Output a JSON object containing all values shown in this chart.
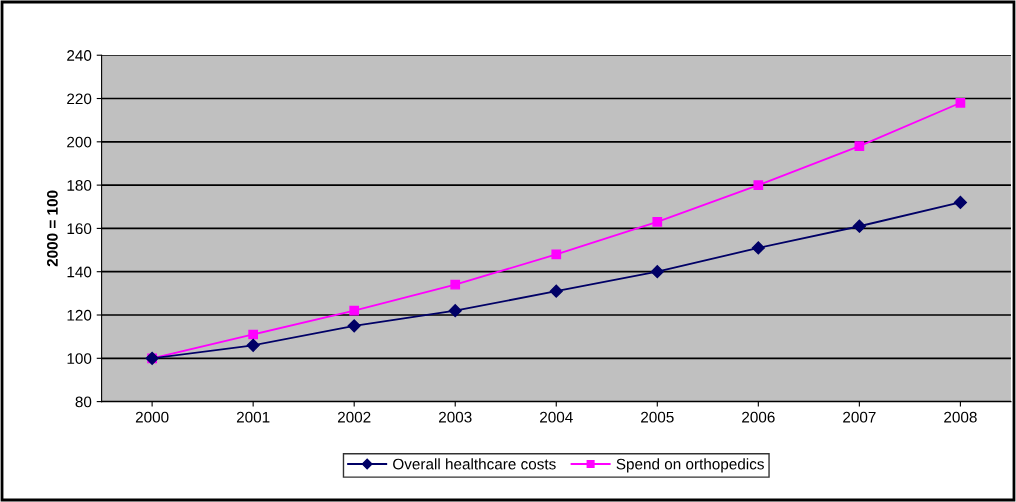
{
  "chart_data": {
    "type": "line",
    "ylabel": "2000 = 100",
    "categories": [
      "2000",
      "2001",
      "2002",
      "2003",
      "2004",
      "2005",
      "2006",
      "2007",
      "2008"
    ],
    "series": [
      {
        "name": "Overall healthcare costs",
        "color": "#000066",
        "marker": "diamond",
        "values": [
          100,
          106,
          115,
          122,
          131,
          140,
          151,
          161,
          172
        ]
      },
      {
        "name": "Spend on orthopedics",
        "color": "#ff00ff",
        "marker": "square",
        "values": [
          100,
          111,
          122,
          134,
          148,
          163,
          180,
          198,
          218
        ]
      }
    ],
    "ylim": [
      80,
      240
    ],
    "yticks": [
      80,
      100,
      120,
      140,
      160,
      180,
      200,
      220,
      240
    ],
    "grid": "y",
    "legend": "bottom",
    "line_style": "solid"
  }
}
